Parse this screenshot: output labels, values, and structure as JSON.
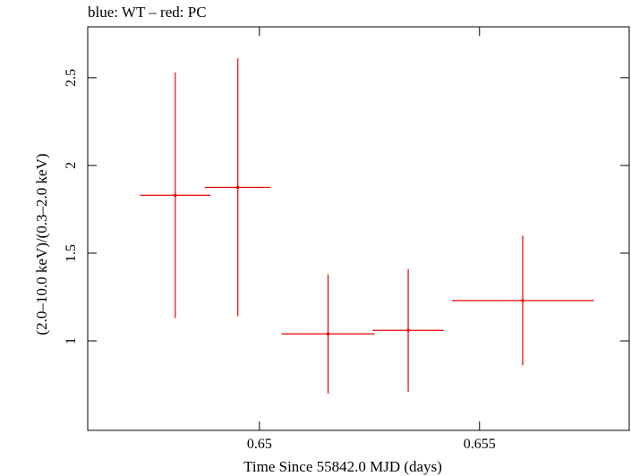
{
  "chart_data": {
    "type": "scatter",
    "title": "blue: WT – red: PC",
    "xlabel": "Time Since 55842.0 MJD (days)",
    "ylabel": "(2.0–10.0 keV)/(0.3–2.0 keV)",
    "xlim": [
      0.6461,
      0.6584
    ],
    "ylim": [
      0.49,
      2.79
    ],
    "x_ticks": [
      {
        "value": 0.65,
        "label": "0.65"
      },
      {
        "value": 0.655,
        "label": "0.655"
      }
    ],
    "y_ticks": [
      {
        "value": 1,
        "label": "1"
      },
      {
        "value": 1.5,
        "label": "1.5"
      },
      {
        "value": 2,
        "label": "2"
      },
      {
        "value": 2.5,
        "label": "2.5"
      }
    ],
    "series": [
      {
        "name": "PC",
        "color": "#ee0000",
        "points": [
          {
            "x": 0.64809,
            "xerr_low": 0.0008,
            "xerr_high": 0.0008,
            "y": 1.83,
            "yerr_low": 0.7,
            "yerr_high": 0.7
          },
          {
            "x": 0.64951,
            "xerr_low": 0.00075,
            "xerr_high": 0.00075,
            "y": 1.875,
            "yerr_low": 0.735,
            "yerr_high": 0.735
          },
          {
            "x": 0.65156,
            "xerr_low": 0.00106,
            "xerr_high": 0.00106,
            "y": 1.04,
            "yerr_low": 0.34,
            "yerr_high": 0.34
          },
          {
            "x": 0.65338,
            "xerr_low": 0.00081,
            "xerr_high": 0.00081,
            "y": 1.06,
            "yerr_low": 0.35,
            "yerr_high": 0.35
          },
          {
            "x": 0.65598,
            "xerr_low": 0.00161,
            "xerr_high": 0.00162,
            "y": 1.23,
            "yerr_low": 0.37,
            "yerr_high": 0.37
          }
        ]
      }
    ]
  }
}
